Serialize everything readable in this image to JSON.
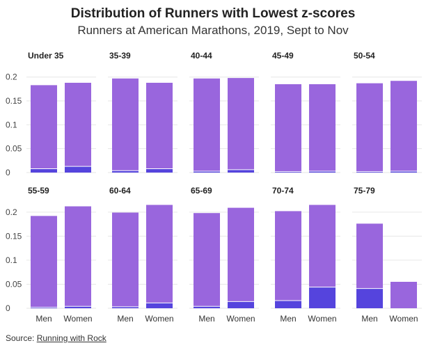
{
  "header": {
    "title": "Distribution of Runners with Lowest z-scores",
    "subtitle": "Runners at American Marathons, 2019, Sept to Nov"
  },
  "footer": {
    "source_label": "Source: ",
    "source_link": "Running with Rock"
  },
  "colors": {
    "total_bar": "#9966dd",
    "lowest_bar": "#5544dd",
    "grid": "#e6e6e6"
  },
  "chart_data": {
    "type": "bar",
    "layout": "facets",
    "categories": [
      "Men",
      "Women"
    ],
    "ylim": [
      0,
      0.22
    ],
    "yticks": [
      "0",
      "0.05",
      "0.1",
      "0.15",
      "0.2"
    ],
    "ytick_values": [
      0,
      0.05,
      0.1,
      0.15,
      0.2
    ],
    "facets": [
      {
        "label": "Under 35",
        "total": [
          0.183,
          0.188
        ],
        "lowest": [
          0.008,
          0.013
        ]
      },
      {
        "label": "35-39",
        "total": [
          0.197,
          0.188
        ],
        "lowest": [
          0.004,
          0.008
        ]
      },
      {
        "label": "40-44",
        "total": [
          0.197,
          0.198
        ],
        "lowest": [
          0.003,
          0.006
        ]
      },
      {
        "label": "45-49",
        "total": [
          0.185,
          0.185
        ],
        "lowest": [
          0.002,
          0.003
        ]
      },
      {
        "label": "50-54",
        "total": [
          0.187,
          0.192
        ],
        "lowest": [
          0.002,
          0.003
        ]
      },
      {
        "label": "55-59",
        "total": [
          0.192,
          0.212
        ],
        "lowest": [
          0.002,
          0.004
        ]
      },
      {
        "label": "60-64",
        "total": [
          0.199,
          0.215
        ],
        "lowest": [
          0.003,
          0.011
        ]
      },
      {
        "label": "65-69",
        "total": [
          0.198,
          0.209
        ],
        "lowest": [
          0.004,
          0.014
        ]
      },
      {
        "label": "70-74",
        "total": [
          0.202,
          0.215
        ],
        "lowest": [
          0.016,
          0.044
        ]
      },
      {
        "label": "75-79",
        "total": [
          0.176,
          0.055
        ],
        "lowest": [
          0.041,
          0.0
        ]
      }
    ]
  }
}
